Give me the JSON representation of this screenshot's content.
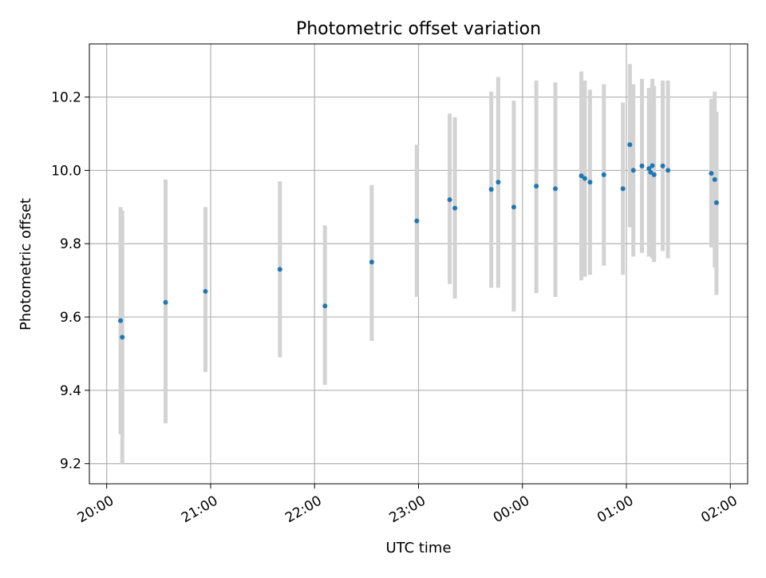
{
  "chart_data": {
    "type": "scatter",
    "title": "Photometric offset variation",
    "xlabel": "UTC time",
    "ylabel": "Photometric offset",
    "xlim": [
      "19:50",
      "02:10"
    ],
    "ylim": [
      9.145,
      10.345
    ],
    "x_ticks": [
      "20:00",
      "21:00",
      "22:00",
      "23:00",
      "00:00",
      "01:00",
      "02:00"
    ],
    "y_ticks": [
      "9.2",
      "9.4",
      "9.6",
      "9.8",
      "10.0",
      "10.2"
    ],
    "grid": true,
    "colors": {
      "point": "#1f77b4",
      "errorbar": "#d3d3d3",
      "grid": "#b0b0b0"
    },
    "series": [
      {
        "points": [
          {
            "t": "20:08",
            "y": 9.59,
            "low": 9.28,
            "high": 9.9
          },
          {
            "t": "20:09",
            "y": 9.545,
            "low": 9.2,
            "high": 9.89
          },
          {
            "t": "20:34",
            "y": 9.64,
            "low": 9.31,
            "high": 9.975
          },
          {
            "t": "20:57",
            "y": 9.67,
            "low": 9.45,
            "high": 9.9
          },
          {
            "t": "21:40",
            "y": 9.73,
            "low": 9.49,
            "high": 9.97
          },
          {
            "t": "22:06",
            "y": 9.63,
            "low": 9.415,
            "high": 9.85
          },
          {
            "t": "22:33",
            "y": 9.75,
            "low": 9.535,
            "high": 9.96
          },
          {
            "t": "22:59",
            "y": 9.862,
            "low": 9.655,
            "high": 10.07
          },
          {
            "t": "23:18",
            "y": 9.92,
            "low": 9.69,
            "high": 10.155
          },
          {
            "t": "23:21",
            "y": 9.897,
            "low": 9.65,
            "high": 10.145
          },
          {
            "t": "23:42",
            "y": 9.948,
            "low": 9.68,
            "high": 10.215
          },
          {
            "t": "23:46",
            "y": 9.968,
            "low": 9.68,
            "high": 10.255
          },
          {
            "t": "23:55",
            "y": 9.9,
            "low": 9.615,
            "high": 10.19
          },
          {
            "t": "00:08",
            "y": 9.957,
            "low": 9.665,
            "high": 10.245
          },
          {
            "t": "00:19",
            "y": 9.95,
            "low": 9.655,
            "high": 10.24
          },
          {
            "t": "00:34",
            "y": 9.985,
            "low": 9.7,
            "high": 10.27
          },
          {
            "t": "00:36",
            "y": 9.978,
            "low": 9.71,
            "high": 10.245
          },
          {
            "t": "00:39",
            "y": 9.968,
            "low": 9.715,
            "high": 10.22
          },
          {
            "t": "00:47",
            "y": 9.988,
            "low": 9.74,
            "high": 10.235
          },
          {
            "t": "00:58",
            "y": 9.95,
            "low": 9.715,
            "high": 10.185
          },
          {
            "t": "01:02",
            "y": 10.07,
            "low": 9.845,
            "high": 10.29
          },
          {
            "t": "01:04",
            "y": 10.0,
            "low": 9.765,
            "high": 10.235
          },
          {
            "t": "01:09",
            "y": 10.012,
            "low": 9.775,
            "high": 10.25
          },
          {
            "t": "01:13",
            "y": 10.005,
            "low": 9.765,
            "high": 10.225
          },
          {
            "t": "01:14",
            "y": 9.995,
            "low": 9.77,
            "high": 10.22
          },
          {
            "t": "01:15",
            "y": 10.013,
            "low": 9.76,
            "high": 10.25
          },
          {
            "t": "01:16",
            "y": 9.988,
            "low": 9.75,
            "high": 10.23
          },
          {
            "t": "01:21",
            "y": 10.012,
            "low": 9.78,
            "high": 10.245
          },
          {
            "t": "01:24",
            "y": 10.0,
            "low": 9.76,
            "high": 10.245
          },
          {
            "t": "01:49",
            "y": 9.992,
            "low": 9.79,
            "high": 10.195
          },
          {
            "t": "01:51",
            "y": 9.975,
            "low": 9.735,
            "high": 10.215
          },
          {
            "t": "01:52",
            "y": 9.912,
            "low": 9.66,
            "high": 10.16
          }
        ]
      }
    ]
  }
}
